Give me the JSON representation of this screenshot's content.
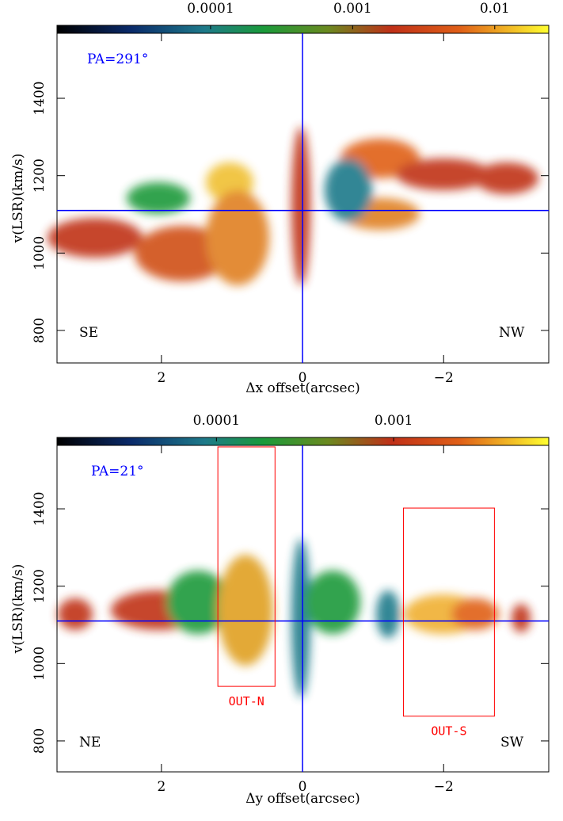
{
  "chart_data": [
    {
      "type": "heatmap",
      "xlabel": "Δx offset(arcsec)",
      "ylabel": "v(LSR)(km/s)",
      "xlim": [
        3.48,
        -3.49
      ],
      "ylim": [
        716,
        1568
      ],
      "xticks": [
        2,
        0,
        {
          "value": -2,
          "label": "−2"
        }
      ],
      "yticks": [
        800,
        1000,
        1200,
        1400
      ],
      "colorbar": {
        "scale": "log",
        "lim": [
          8.3e-06,
          0.024
        ],
        "ticks": [
          0.0001,
          0.001,
          0.01
        ]
      },
      "ref_x": 0,
      "ref_y": 1110,
      "ref_color": "#0000ff",
      "annotations": [
        "PA=291°",
        "SE",
        "NW"
      ]
    },
    {
      "type": "heatmap",
      "xlabel": "Δy offset(arcsec)",
      "ylabel": "v(LSR)(km/s)",
      "xlim": [
        3.48,
        -3.49
      ],
      "ylim": [
        720,
        1564
      ],
      "xticks": [
        2,
        0,
        {
          "value": -2,
          "label": "−2"
        }
      ],
      "yticks": [
        800,
        1000,
        1200,
        1400
      ],
      "colorbar": {
        "scale": "log",
        "lim": [
          1.26e-05,
          0.0075
        ],
        "ticks": [
          0.0001,
          0.001
        ]
      },
      "ref_x": 0,
      "ref_y": 1110,
      "ref_color": "#0000ff",
      "annotations": [
        "PA=21°",
        "NE",
        "SW"
      ],
      "regions": [
        {
          "label": "OUT-N",
          "xlim": [
            1.2,
            0.39
          ],
          "ylim": [
            941,
            1560
          ],
          "color": "#ff0000"
        },
        {
          "label": "OUT-S",
          "xlim": [
            -1.43,
            -2.72
          ],
          "ylim": [
            864,
            1402
          ],
          "color": "#ff0000"
        }
      ]
    }
  ]
}
